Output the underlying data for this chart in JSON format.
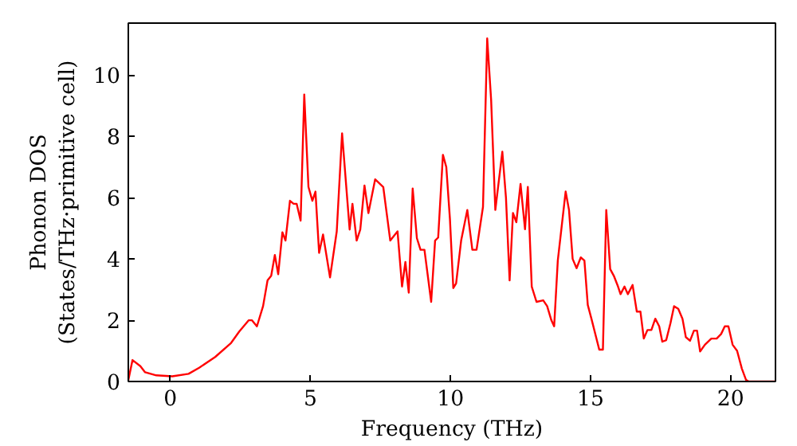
{
  "chart_data": {
    "type": "line",
    "xlabel": "Frequency (THz)",
    "ylabel": "Phonon DOS\n(States/THz·primitive cell)",
    "xlim": [
      -1.5,
      21.6
    ],
    "ylim": [
      0,
      11.7
    ],
    "xticks": [
      0,
      5,
      10,
      15,
      20
    ],
    "yticks": [
      0,
      2,
      4,
      6,
      8,
      10
    ],
    "grid": false,
    "series": [
      {
        "color": "#ff0000",
        "x": [
          -1.5,
          -1.35,
          -1.07,
          -0.9,
          -0.5,
          0.07,
          0.65,
          1.03,
          1.6,
          2.17,
          2.46,
          2.8,
          2.91,
          3.09,
          3.31,
          3.47,
          3.6,
          3.73,
          3.85,
          4.0,
          4.11,
          4.27,
          4.4,
          4.51,
          4.65,
          4.78,
          4.93,
          5.07,
          5.18,
          5.31,
          5.45,
          5.7,
          5.94,
          6.13,
          6.4,
          6.5,
          6.65,
          6.78,
          6.93,
          7.07,
          7.31,
          7.6,
          7.85,
          8.11,
          8.27,
          8.39,
          8.51,
          8.65,
          8.8,
          8.93,
          9.07,
          9.31,
          9.45,
          9.56,
          9.73,
          9.85,
          9.98,
          10.1,
          10.2,
          10.38,
          10.6,
          10.78,
          10.93,
          11.16,
          11.31,
          11.45,
          11.6,
          11.85,
          11.98,
          12.11,
          12.23,
          12.35,
          12.5,
          12.66,
          12.76,
          12.9,
          13.07,
          13.31,
          13.45,
          13.6,
          13.7,
          13.83,
          14.11,
          14.23,
          14.36,
          14.5,
          14.65,
          14.78,
          14.9,
          15.03,
          15.31,
          15.44,
          15.56,
          15.7,
          15.83,
          15.98,
          16.07,
          16.21,
          16.33,
          16.5,
          16.65,
          16.78,
          16.9,
          17.03,
          17.17,
          17.31,
          17.45,
          17.56,
          17.7,
          17.85,
          17.98,
          18.13,
          18.28,
          18.4,
          18.55,
          18.69,
          18.8,
          18.91,
          19.08,
          19.31,
          19.5,
          19.66,
          19.79,
          19.92,
          20.07,
          20.23,
          20.4,
          20.55,
          20.65,
          21.6
        ],
        "values": [
          0.04,
          0.7,
          0.5,
          0.3,
          0.2,
          0.17,
          0.25,
          0.45,
          0.8,
          1.26,
          1.63,
          2.0,
          2.0,
          1.8,
          2.46,
          3.3,
          3.45,
          4.13,
          3.5,
          4.87,
          4.6,
          5.9,
          5.8,
          5.8,
          5.25,
          9.37,
          6.35,
          5.9,
          6.2,
          4.2,
          4.8,
          3.4,
          4.9,
          8.1,
          4.96,
          5.8,
          4.6,
          4.96,
          6.4,
          5.5,
          6.6,
          6.35,
          4.6,
          4.9,
          3.1,
          3.9,
          2.9,
          6.3,
          4.68,
          4.3,
          4.3,
          2.6,
          4.6,
          4.7,
          7.4,
          7.0,
          5.3,
          3.05,
          3.2,
          4.6,
          5.6,
          4.3,
          4.3,
          5.7,
          11.2,
          9.2,
          5.6,
          7.5,
          6.0,
          3.3,
          5.5,
          5.2,
          6.45,
          4.97,
          6.35,
          3.1,
          2.6,
          2.65,
          2.46,
          2.0,
          1.8,
          3.95,
          6.2,
          5.6,
          4.0,
          3.7,
          4.05,
          3.95,
          2.5,
          2.05,
          1.04,
          1.04,
          5.6,
          3.67,
          3.45,
          3.1,
          2.85,
          3.1,
          2.85,
          3.15,
          2.28,
          2.28,
          1.4,
          1.68,
          1.68,
          2.05,
          1.8,
          1.3,
          1.35,
          1.9,
          2.46,
          2.37,
          2.05,
          1.45,
          1.33,
          1.66,
          1.66,
          0.98,
          1.2,
          1.4,
          1.4,
          1.55,
          1.8,
          1.8,
          1.2,
          1.0,
          0.42,
          0.05,
          0,
          0
        ]
      }
    ]
  }
}
